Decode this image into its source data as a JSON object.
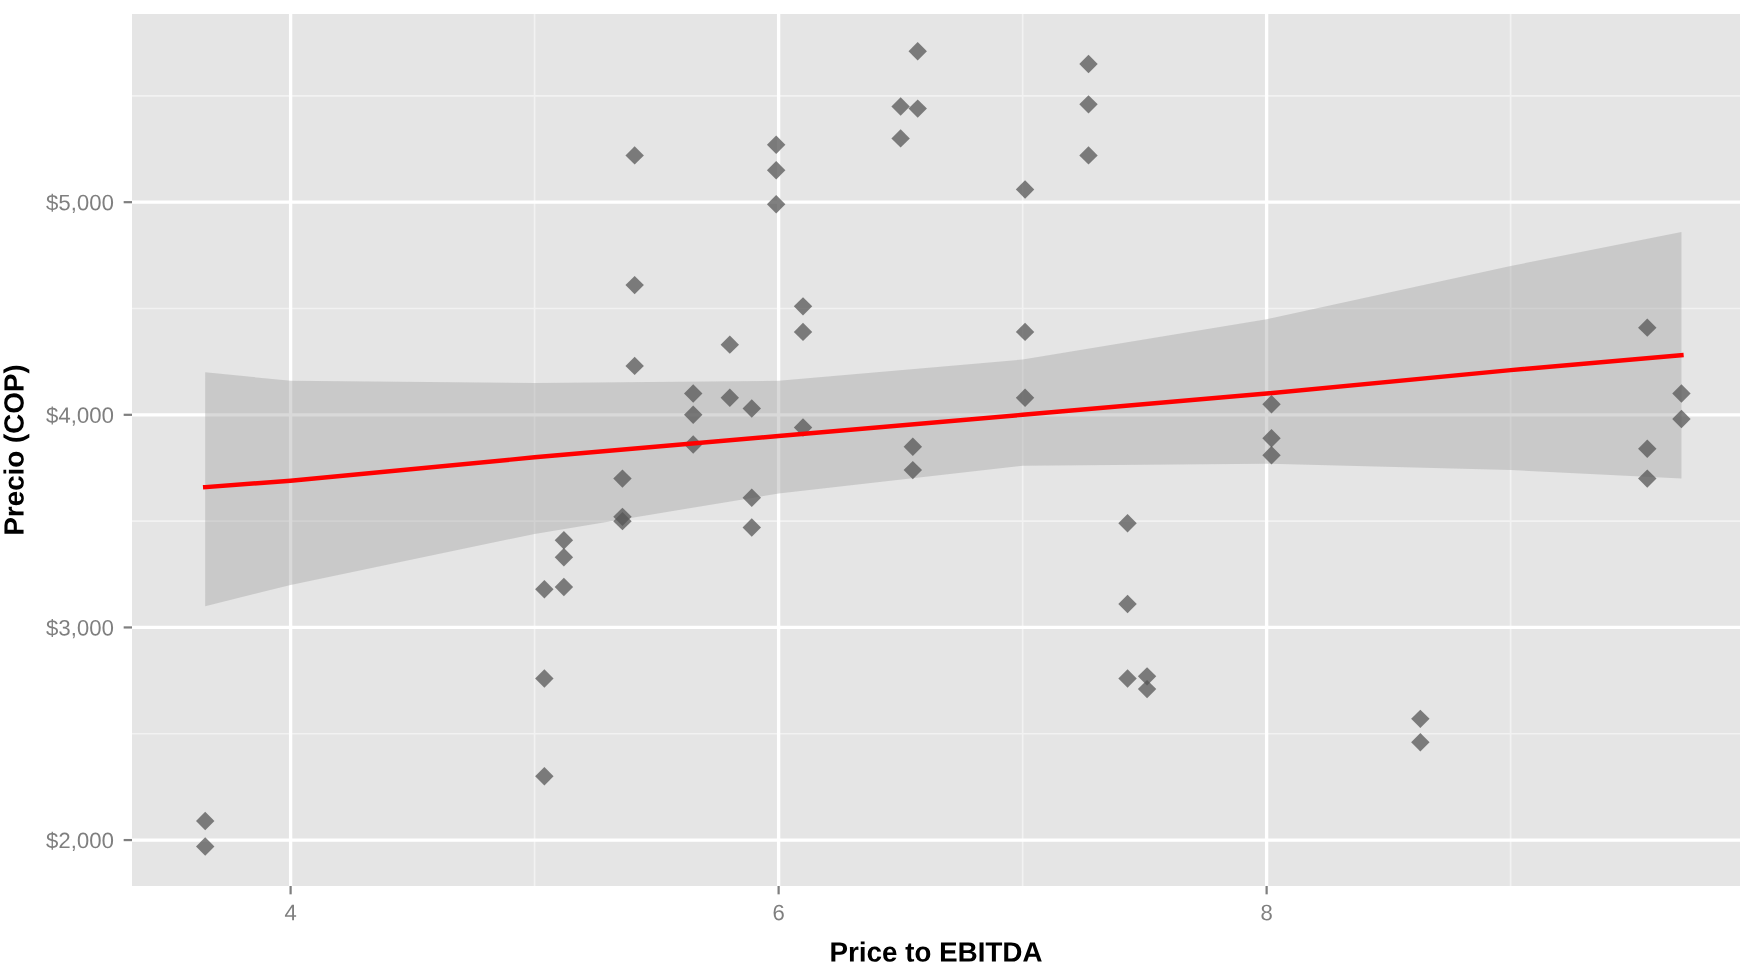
{
  "chart_data": {
    "type": "scatter",
    "xlabel": "Price to EBITDA",
    "ylabel": "Precio (COP)",
    "xlim": [
      3.35,
      9.94
    ],
    "ylim": [
      1784,
      5885
    ],
    "xticks": [
      4,
      6,
      8
    ],
    "yticks": [
      {
        "value": 2000,
        "label": "$2,000"
      },
      {
        "value": 3000,
        "label": "$3,000"
      },
      {
        "value": 4000,
        "label": "$4,000"
      },
      {
        "value": 5000,
        "label": "$5,000"
      }
    ],
    "grid": true,
    "series": [
      {
        "color": "#555555",
        "marker": "diamond",
        "x": [
          3.65,
          3.65,
          5.04,
          5.04,
          5.04,
          5.12,
          5.12,
          5.12,
          5.36,
          5.36,
          5.36,
          5.41,
          5.41,
          5.41,
          5.65,
          5.65,
          5.65,
          5.8,
          5.8,
          5.89,
          5.89,
          5.89,
          5.99,
          5.99,
          5.99,
          6.1,
          6.1,
          6.1,
          6.57,
          6.5,
          6.57,
          6.5,
          6.55,
          6.55,
          7.01,
          7.01,
          7.01,
          7.27,
          7.27,
          7.27,
          7.43,
          7.43,
          7.43,
          7.51,
          7.51,
          8.02,
          8.02,
          8.02,
          8.63,
          8.63,
          9.56,
          9.56,
          9.56,
          9.7,
          9.7
        ],
        "values": [
          2090,
          1970,
          3180,
          2760,
          2300,
          3410,
          3330,
          3190,
          3700,
          3520,
          3500,
          5220,
          4610,
          4230,
          4100,
          4000,
          3860,
          4330,
          4080,
          4030,
          3610,
          3470,
          5270,
          5150,
          4990,
          4510,
          4390,
          3940,
          5710,
          5450,
          5440,
          5300,
          3850,
          3740,
          5060,
          4390,
          4080,
          5650,
          5460,
          5220,
          3490,
          3110,
          2760,
          2770,
          2710,
          4050,
          3890,
          3810,
          2570,
          2460,
          4410,
          3840,
          3700,
          4100,
          3980
        ]
      },
      {
        "type": "line",
        "color": "#ff0000",
        "marker": "none",
        "x": [
          3.65,
          4,
          5,
          6,
          7,
          8,
          9,
          9.7
        ],
        "values": [
          3660,
          3690,
          3800,
          3900,
          4000,
          4100,
          4210,
          4280
        ],
        "lower": [
          3100,
          3200,
          3440,
          3630,
          3760,
          3770,
          3740,
          3700
        ],
        "upper": [
          4200,
          4160,
          4150,
          4160,
          4260,
          4450,
          4700,
          4860
        ]
      }
    ]
  }
}
